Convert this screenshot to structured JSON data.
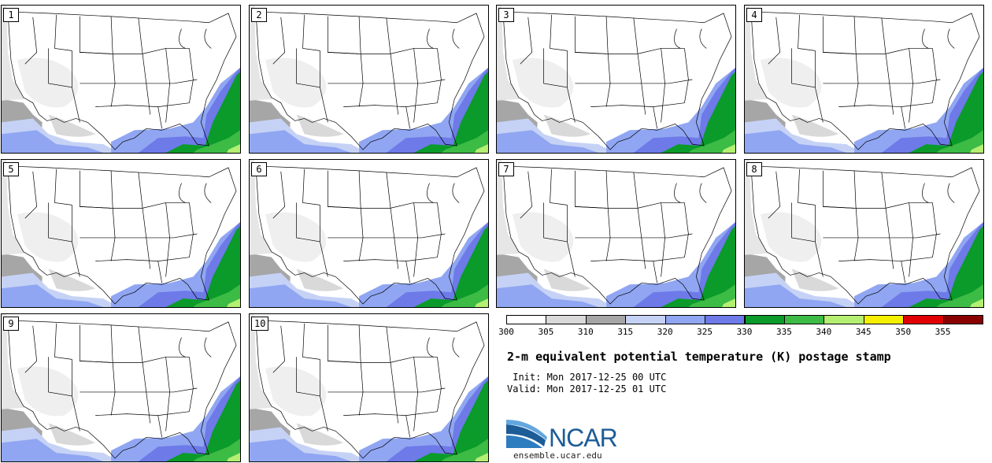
{
  "stamps": [
    {
      "label": "1"
    },
    {
      "label": "2"
    },
    {
      "label": "3"
    },
    {
      "label": "4"
    },
    {
      "label": "5"
    },
    {
      "label": "6"
    },
    {
      "label": "7"
    },
    {
      "label": "8"
    },
    {
      "label": "9"
    },
    {
      "label": "10"
    }
  ],
  "colorbar": {
    "ticks": [
      "300",
      "305",
      "310",
      "315",
      "320",
      "325",
      "330",
      "335",
      "340",
      "345",
      "350",
      "355"
    ],
    "colors": [
      "#ffffff",
      "#d9d9d9",
      "#a6a6a6",
      "#c6d2f5",
      "#90a6f2",
      "#6d7ae8",
      "#0a9b2a",
      "#3cbb45",
      "#b4ef72",
      "#f5f000",
      "#e00000",
      "#8a0000"
    ]
  },
  "title": "2-m equivalent potential temperature (K) postage stamp",
  "init_line": " Init: Mon 2017-12-25 00 UTC",
  "valid_line": "Valid: Mon 2017-12-25 01 UTC",
  "logo": {
    "text": "NCAR",
    "url": "ensemble.ucar.edu"
  }
}
